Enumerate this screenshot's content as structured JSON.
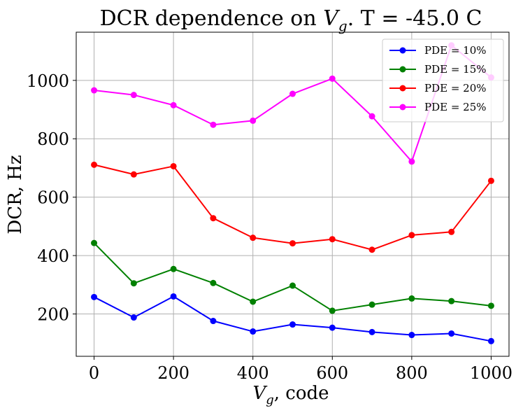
{
  "chart_data": {
    "type": "line",
    "title_prefix": "DCR dependence on ",
    "title_var": "V",
    "title_sub": "g",
    "title_suffix": ". T = -45.0 C",
    "xlabel_var": "V",
    "xlabel_sub": "g",
    "xlabel_suffix": ", code",
    "ylabel": "DCR, Hz",
    "x": [
      0,
      100,
      200,
      300,
      400,
      500,
      600,
      700,
      800,
      900,
      1000
    ],
    "xlim": [
      -45,
      1045
    ],
    "ylim": [
      55,
      1165
    ],
    "xticks": [
      0,
      200,
      400,
      600,
      800,
      1000
    ],
    "yticks": [
      200,
      400,
      600,
      800,
      1000
    ],
    "grid": true,
    "legend_position": "top-right",
    "series": [
      {
        "name": "PDE = 10%",
        "color": "#0000ff",
        "values": [
          258,
          188,
          260,
          176,
          140,
          164,
          153,
          138,
          128,
          133,
          107
        ]
      },
      {
        "name": "PDE = 15%",
        "color": "#008000",
        "values": [
          443,
          305,
          354,
          306,
          242,
          297,
          211,
          232,
          253,
          244,
          228
        ]
      },
      {
        "name": "PDE = 20%",
        "color": "#ff0000",
        "values": [
          711,
          678,
          706,
          528,
          461,
          442,
          456,
          420,
          470,
          481,
          656
        ]
      },
      {
        "name": "PDE = 25%",
        "color": "#ff00ff",
        "values": [
          966,
          950,
          915,
          848,
          862,
          954,
          1006,
          877,
          722,
          1120,
          1010
        ]
      }
    ]
  }
}
